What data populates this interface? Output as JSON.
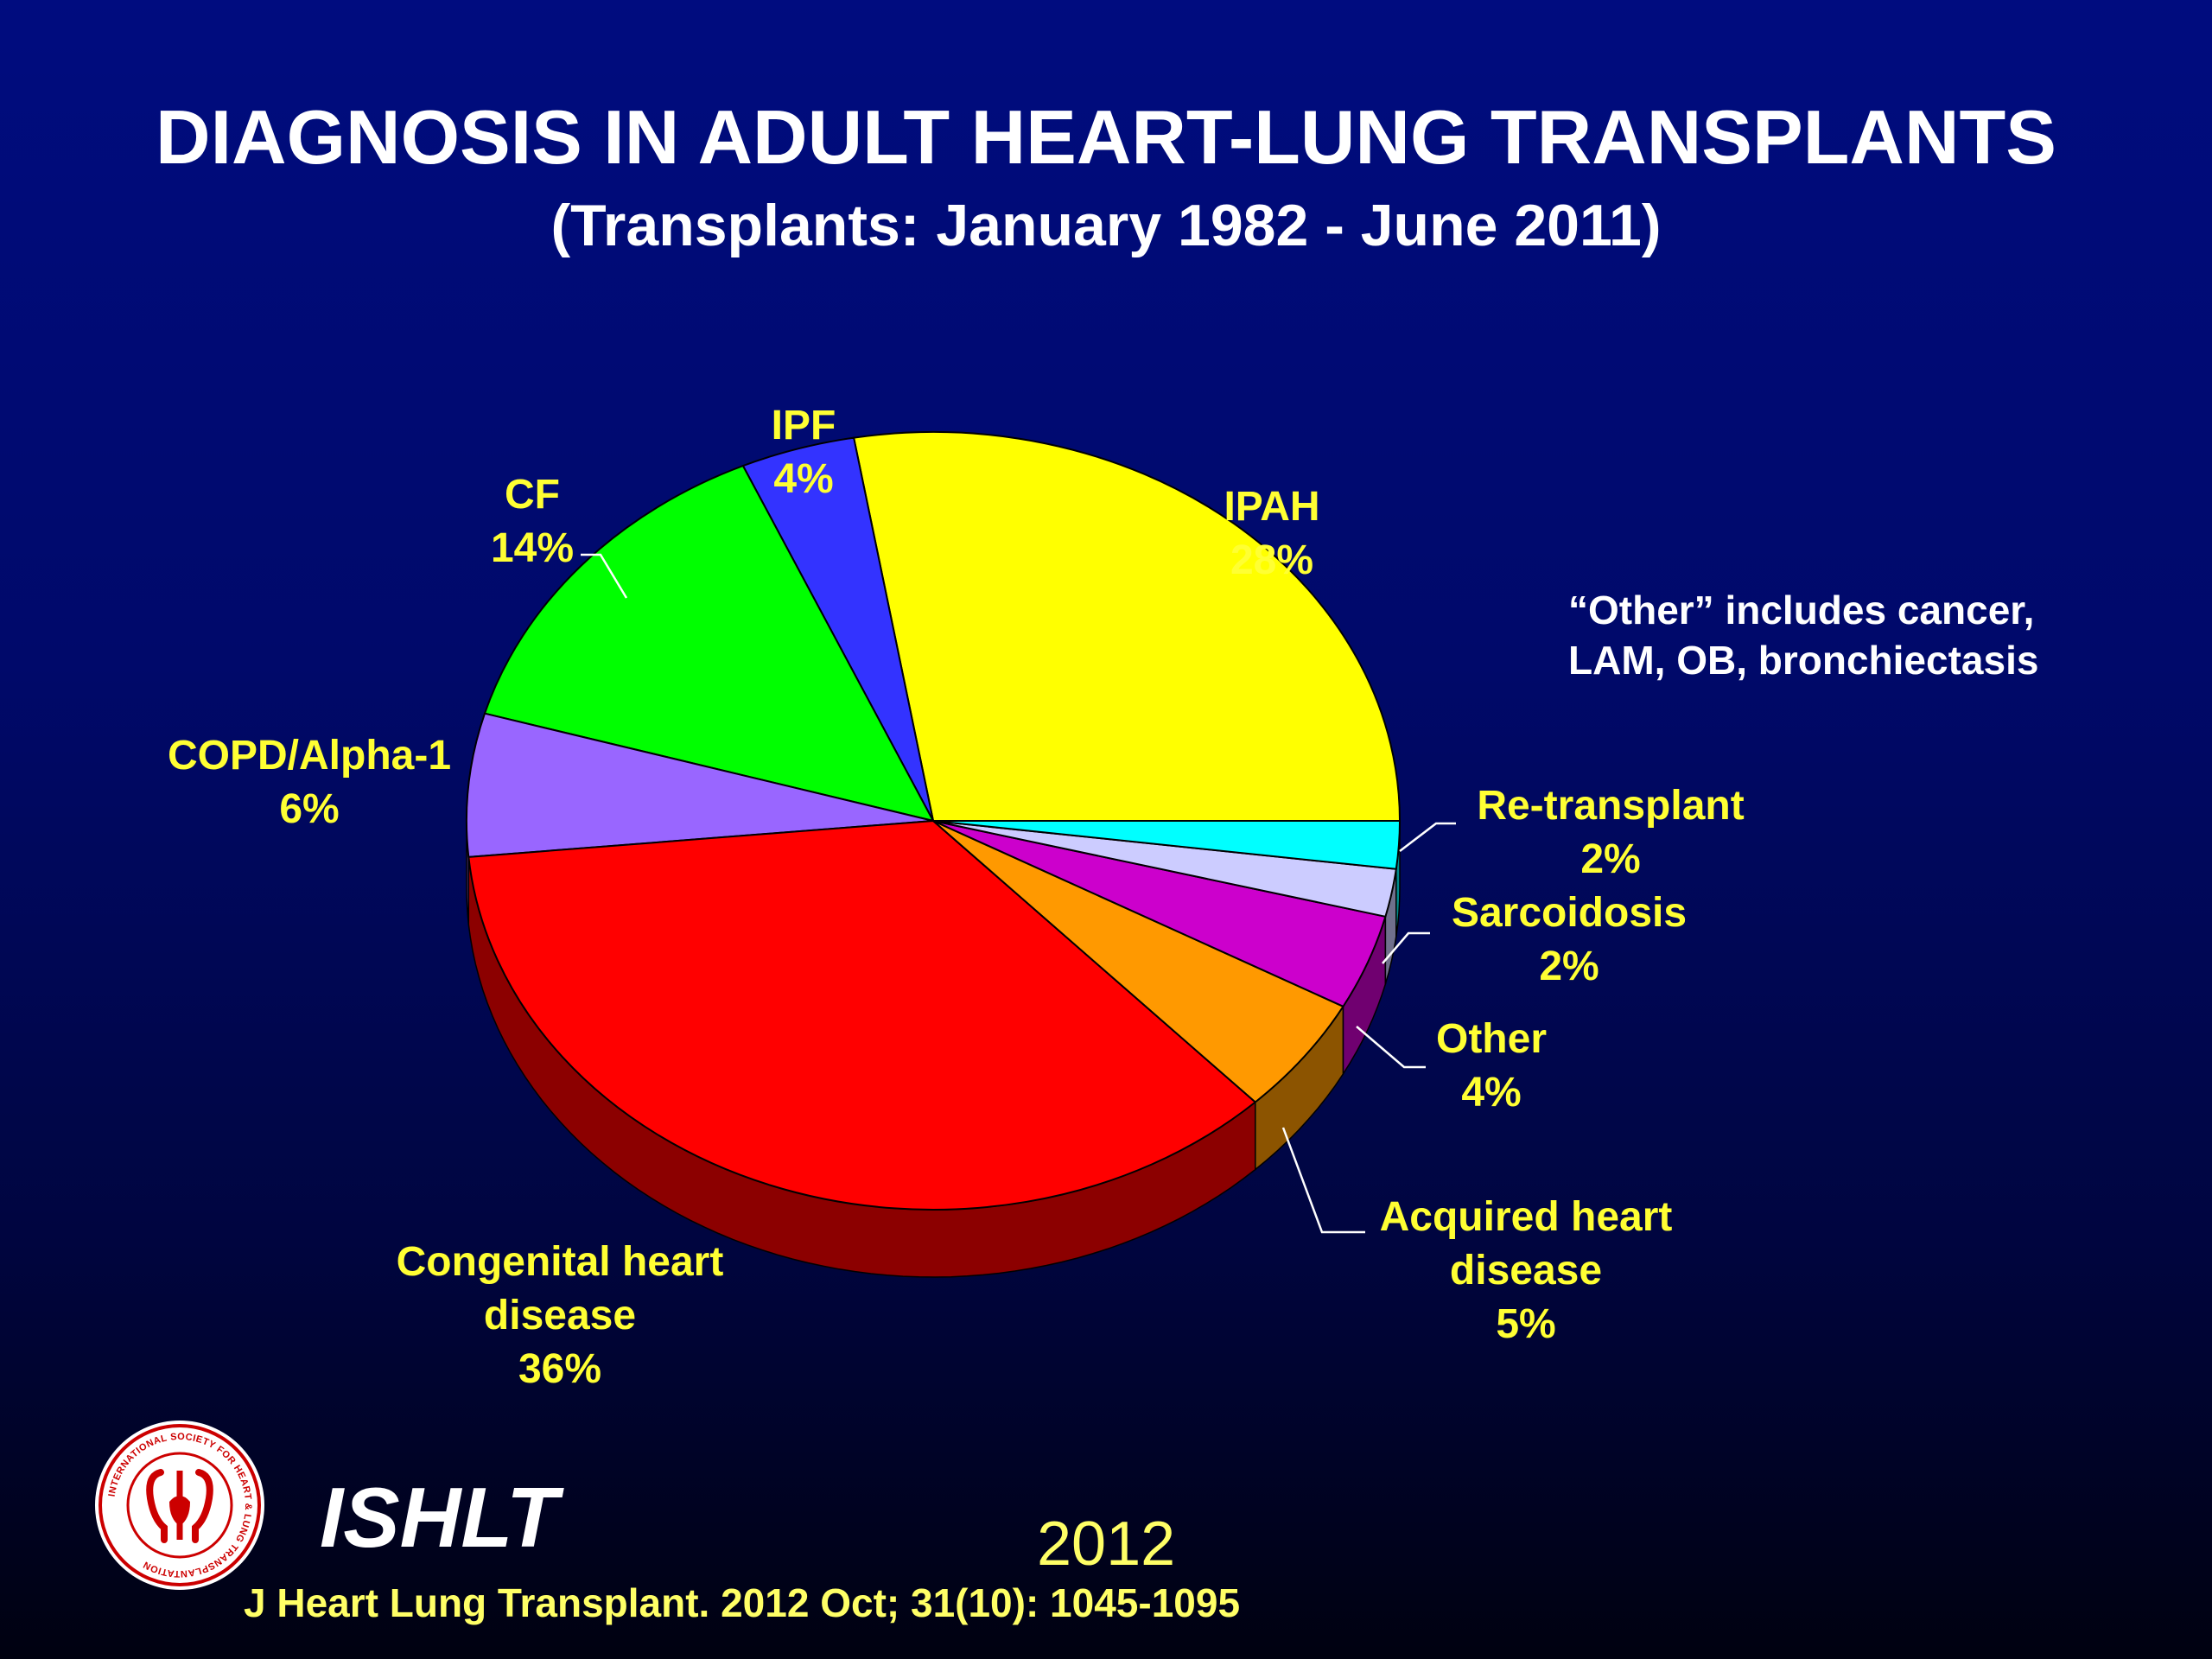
{
  "slide": {
    "title": "DIAGNOSIS IN ADULT HEART-LUNG TRANSPLANTS",
    "subtitle": "(Transplants: January 1982 - June 2011)",
    "note": "“Other” includes cancer,\nLAM, OB, bronchiectasis",
    "brand": "ISHLT",
    "logo_text": "INTERNATIONAL SOCIETY FOR HEART & LUNG TRANSPLANTATION",
    "year": "2012",
    "citation": "J Heart Lung Transplant.  2012 Oct; 31(10): 1045-1095"
  },
  "colors": {
    "background_top": "#000C7F",
    "background_bottom": "#000110",
    "title": "#FFFFFF",
    "label": "#FFFF33",
    "footer": "#FFFF66"
  },
  "chart_data": {
    "type": "pie",
    "style": "3d-tilted",
    "start_angle_deg": 0,
    "direction": "counterclockwise",
    "slices": [
      {
        "name": "IPAH",
        "value": 28,
        "label_lines": [
          "IPAH",
          "28%"
        ],
        "color": "#FFFF00"
      },
      {
        "name": "IPF",
        "value": 4,
        "label_lines": [
          "IPF",
          "4%"
        ],
        "color": "#3333FF"
      },
      {
        "name": "CF",
        "value": 14,
        "label_lines": [
          "CF",
          "14%"
        ],
        "color": "#00FF00"
      },
      {
        "name": "COPD/Alpha-1",
        "value": 6,
        "label_lines": [
          "COPD/Alpha-1",
          "6%"
        ],
        "color": "#9966FF"
      },
      {
        "name": "Congenital heart disease",
        "value": 36,
        "label_lines": [
          "Congenital heart",
          "disease",
          "36%"
        ],
        "color": "#FF0000"
      },
      {
        "name": "Acquired heart disease",
        "value": 5,
        "label_lines": [
          "Acquired heart",
          "disease",
          "5%"
        ],
        "color": "#FF9900"
      },
      {
        "name": "Other",
        "value": 4,
        "label_lines": [
          "Other",
          "4%"
        ],
        "color": "#CC00CC"
      },
      {
        "name": "Sarcoidosis",
        "value": 2,
        "label_lines": [
          "Sarcoidosis",
          "2%"
        ],
        "color": "#CCCCFF"
      },
      {
        "name": "Re-transplant",
        "value": 2,
        "label_lines": [
          "Re-transplant",
          "2%"
        ],
        "color": "#00FFFF"
      }
    ]
  }
}
